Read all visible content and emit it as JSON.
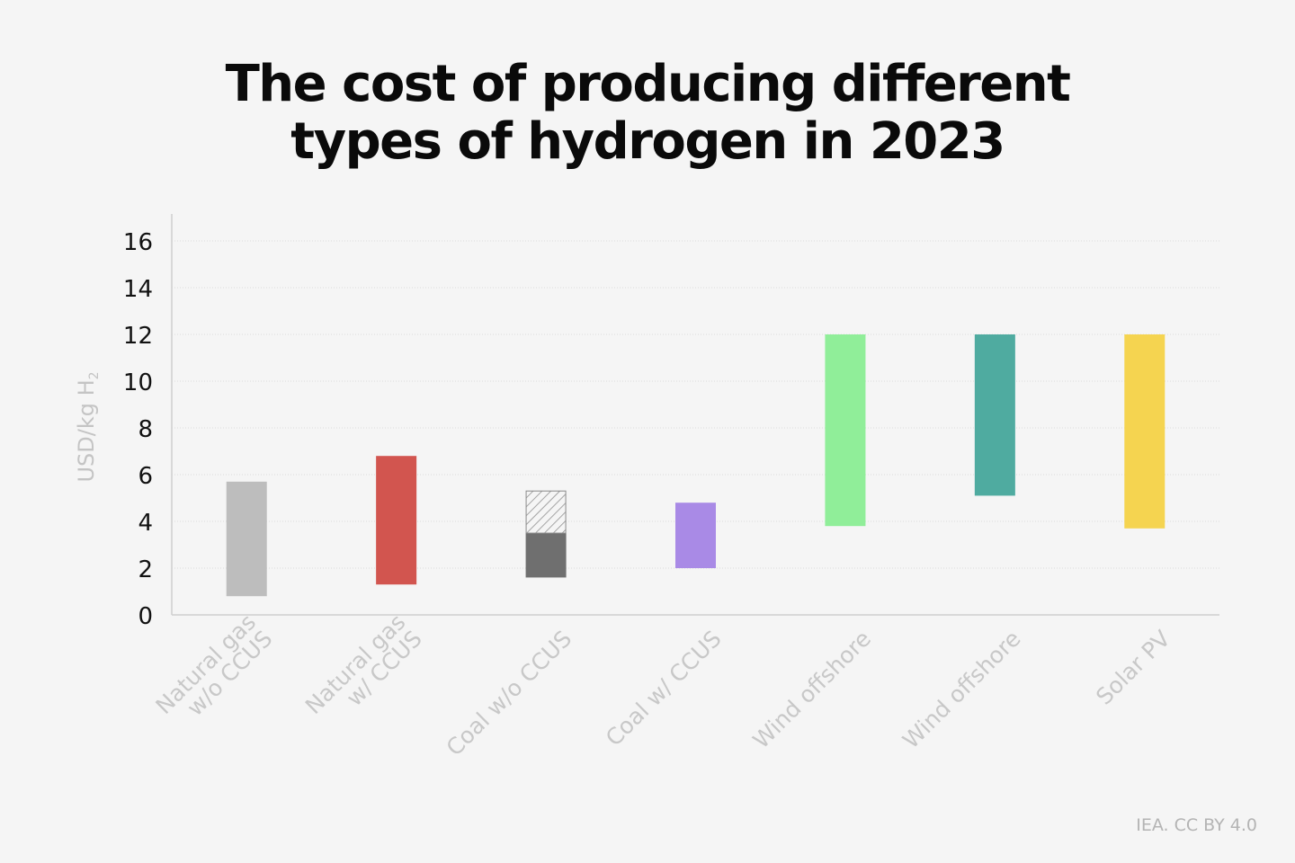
{
  "chart_data": {
    "type": "bar",
    "subtype": "floating-range",
    "title_lines": [
      "The cost of producing different",
      "types of hydrogen in 2023"
    ],
    "ylabel": "USD/kg H",
    "ylabel_subscript": "2",
    "ylim": [
      0,
      16
    ],
    "yticks": [
      0,
      2,
      4,
      6,
      8,
      10,
      12,
      14,
      16
    ],
    "grid": true,
    "categories": [
      {
        "label": [
          "Natural gas",
          "w/o CCUS"
        ],
        "low": 0.8,
        "high": 5.7,
        "color": "#bdbdbd"
      },
      {
        "label": [
          "Natural gas",
          "w/ CCUS"
        ],
        "low": 1.3,
        "high": 6.8,
        "color": "#d2554f"
      },
      {
        "label": [
          "Coal w/o CCUS"
        ],
        "low": 1.6,
        "high": 3.5,
        "color": "#6f6f6f",
        "hatched_low": 3.5,
        "hatched_high": 5.3
      },
      {
        "label": [
          "Coal w/ CCUS"
        ],
        "low": 2.0,
        "high": 4.8,
        "color": "#a98ae6"
      },
      {
        "label": [
          "Wind offshore"
        ],
        "low": 3.8,
        "high": 12.0,
        "color": "#90ee99"
      },
      {
        "label": [
          "Wind offshore"
        ],
        "low": 5.1,
        "high": 12.0,
        "color": "#4faba0"
      },
      {
        "label": [
          "Solar PV"
        ],
        "low": 3.7,
        "high": 12.0,
        "color": "#f5d450"
      }
    ]
  },
  "credit": "IEA. CC BY 4.0"
}
